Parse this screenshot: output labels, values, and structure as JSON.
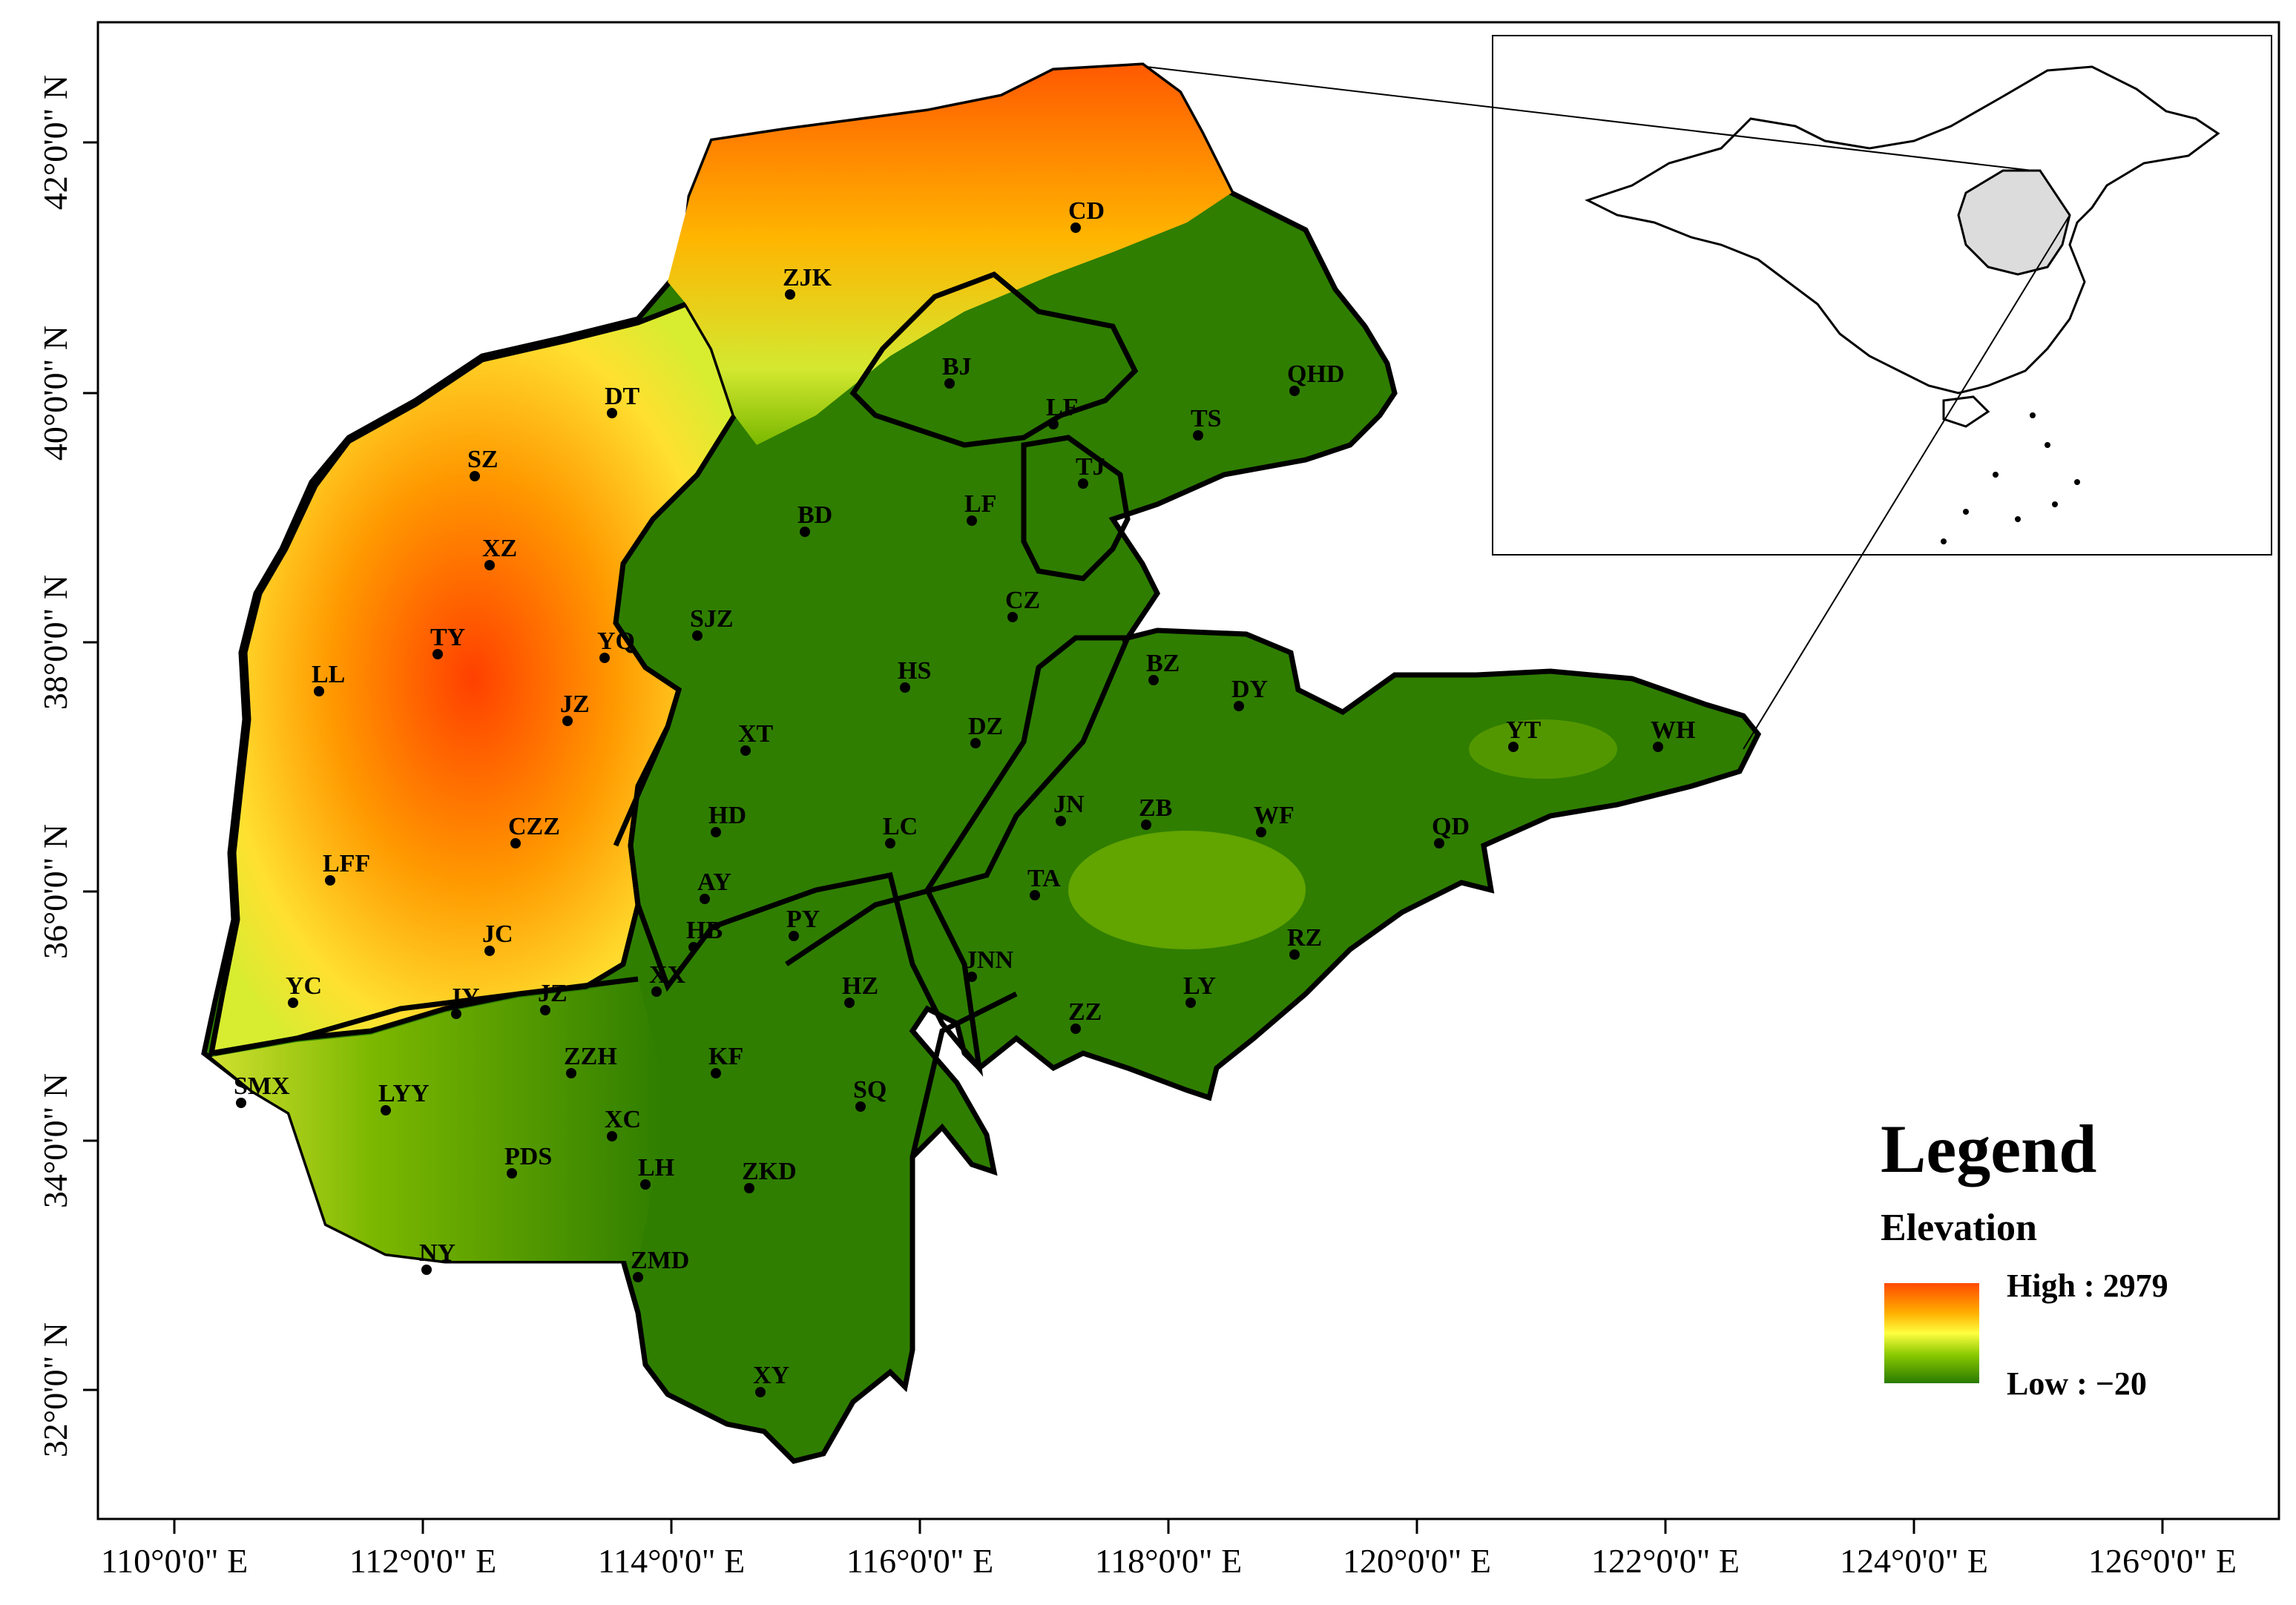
{
  "map": {
    "x_ticks": [
      "110°0'0\" E",
      "112°0'0\" E",
      "114°0'0\" E",
      "116°0'0\" E",
      "118°0'0\" E",
      "120°0'0\" E",
      "122°0'0\" E",
      "124°0'0\" E",
      "126°0'0\" E"
    ],
    "y_ticks": [
      "42°0'0\" N",
      "40°0'0\" N",
      "38°0'0\" N",
      "36°0'0\" N",
      "34°0'0\" N",
      "32°0'0\" N"
    ],
    "city_labels": [
      "CD",
      "ZJK",
      "BJ",
      "LF",
      "QHD",
      "TS",
      "TJ",
      "DT",
      "SZ",
      "XZ",
      "BD",
      "LF",
      "CZ",
      "SJZ",
      "TY",
      "YQ",
      "LL",
      "HS",
      "JZ",
      "BZ",
      "DY",
      "YT",
      "WH",
      "XT",
      "DZ",
      "JN",
      "ZB",
      "WF",
      "CZZ",
      "HD",
      "LC",
      "QD",
      "LFF",
      "TA",
      "AY",
      "HB",
      "PY",
      "JC",
      "JNN",
      "RZ",
      "YC",
      "JY",
      "JZ",
      "XX",
      "HZ",
      "LY",
      "ZZ",
      "SMX",
      "ZZH",
      "KF",
      "LYY",
      "SQ",
      "XC",
      "PDS",
      "LH",
      "ZKD",
      "NY",
      "ZMD",
      "XY"
    ]
  },
  "legend": {
    "title": "Legend",
    "subtitle": "Elevation",
    "high": "High : 2979",
    "low": "Low : −20",
    "colors": {
      "high": "#ff3a00",
      "mid_high": "#ff9c00",
      "mid": "#ffff3a",
      "mid_low": "#8fcf00",
      "low": "#2e7d00"
    }
  }
}
